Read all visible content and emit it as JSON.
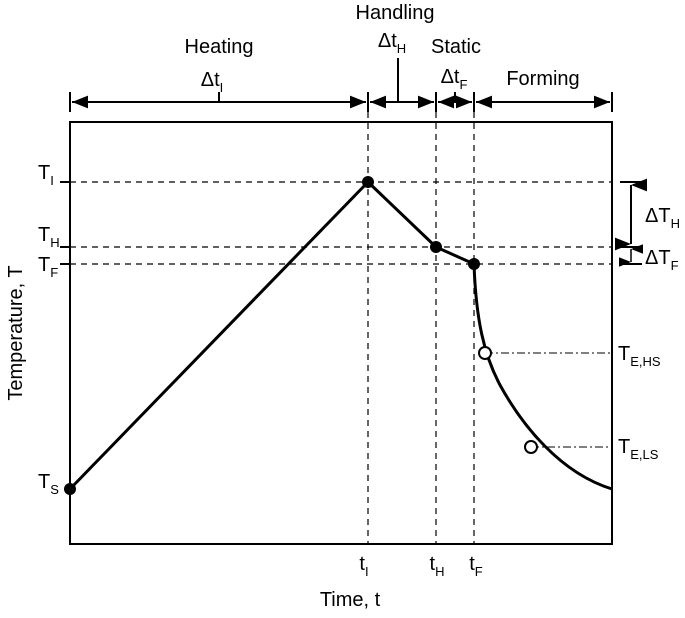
{
  "axes": {
    "x_label": "Time, t",
    "y_label": "Temperature, T"
  },
  "phases": {
    "heating": {
      "label": "Heating",
      "interval": "Δt",
      "interval_sub": "I"
    },
    "handling": {
      "label": "Handling",
      "interval": "Δt",
      "interval_sub": "H"
    },
    "static": {
      "label": "Static",
      "interval": "Δt",
      "interval_sub": "F"
    },
    "forming": {
      "label": "Forming"
    }
  },
  "y_levels": {
    "t_i": {
      "main": "T",
      "sub": "I"
    },
    "t_h": {
      "main": "T",
      "sub": "H"
    },
    "t_f": {
      "main": "T",
      "sub": "F"
    },
    "t_s": {
      "main": "T",
      "sub": "S"
    }
  },
  "x_marks": {
    "t_i": {
      "main": "t",
      "sub": "I"
    },
    "t_h": {
      "main": "t",
      "sub": "H"
    },
    "t_f": {
      "main": "t",
      "sub": "F"
    }
  },
  "right_labels": {
    "delta_t_h": {
      "main": "ΔT",
      "sub": "H"
    },
    "delta_t_f": {
      "main": "ΔT",
      "sub": "F"
    },
    "t_e_hs": {
      "main": "T",
      "sub": "E,HS"
    },
    "t_e_ls": {
      "main": "T",
      "sub": "E,LS"
    }
  }
}
